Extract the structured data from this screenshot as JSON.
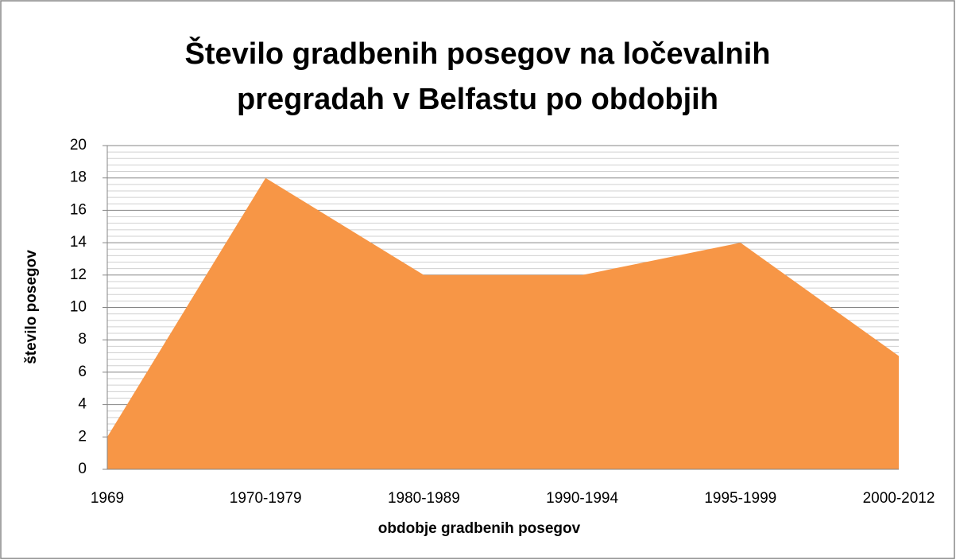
{
  "chart_data": {
    "type": "area",
    "title": "Število gradbenih posegov na ločevalnih pregradah v Belfastu po obdobjih",
    "xlabel": "obdobje gradbenih posegov",
    "ylabel": "število posegov",
    "categories": [
      "1969",
      "1970-1979",
      "1980-1989",
      "1990-1994",
      "1995-1999",
      "2000-2012"
    ],
    "values": [
      2,
      18,
      12,
      12,
      14,
      7
    ],
    "color": "#f79646",
    "ylim": [
      0,
      20
    ],
    "yticks": [
      0,
      2,
      4,
      6,
      8,
      10,
      12,
      14,
      16,
      18,
      20
    ],
    "grid": true
  }
}
